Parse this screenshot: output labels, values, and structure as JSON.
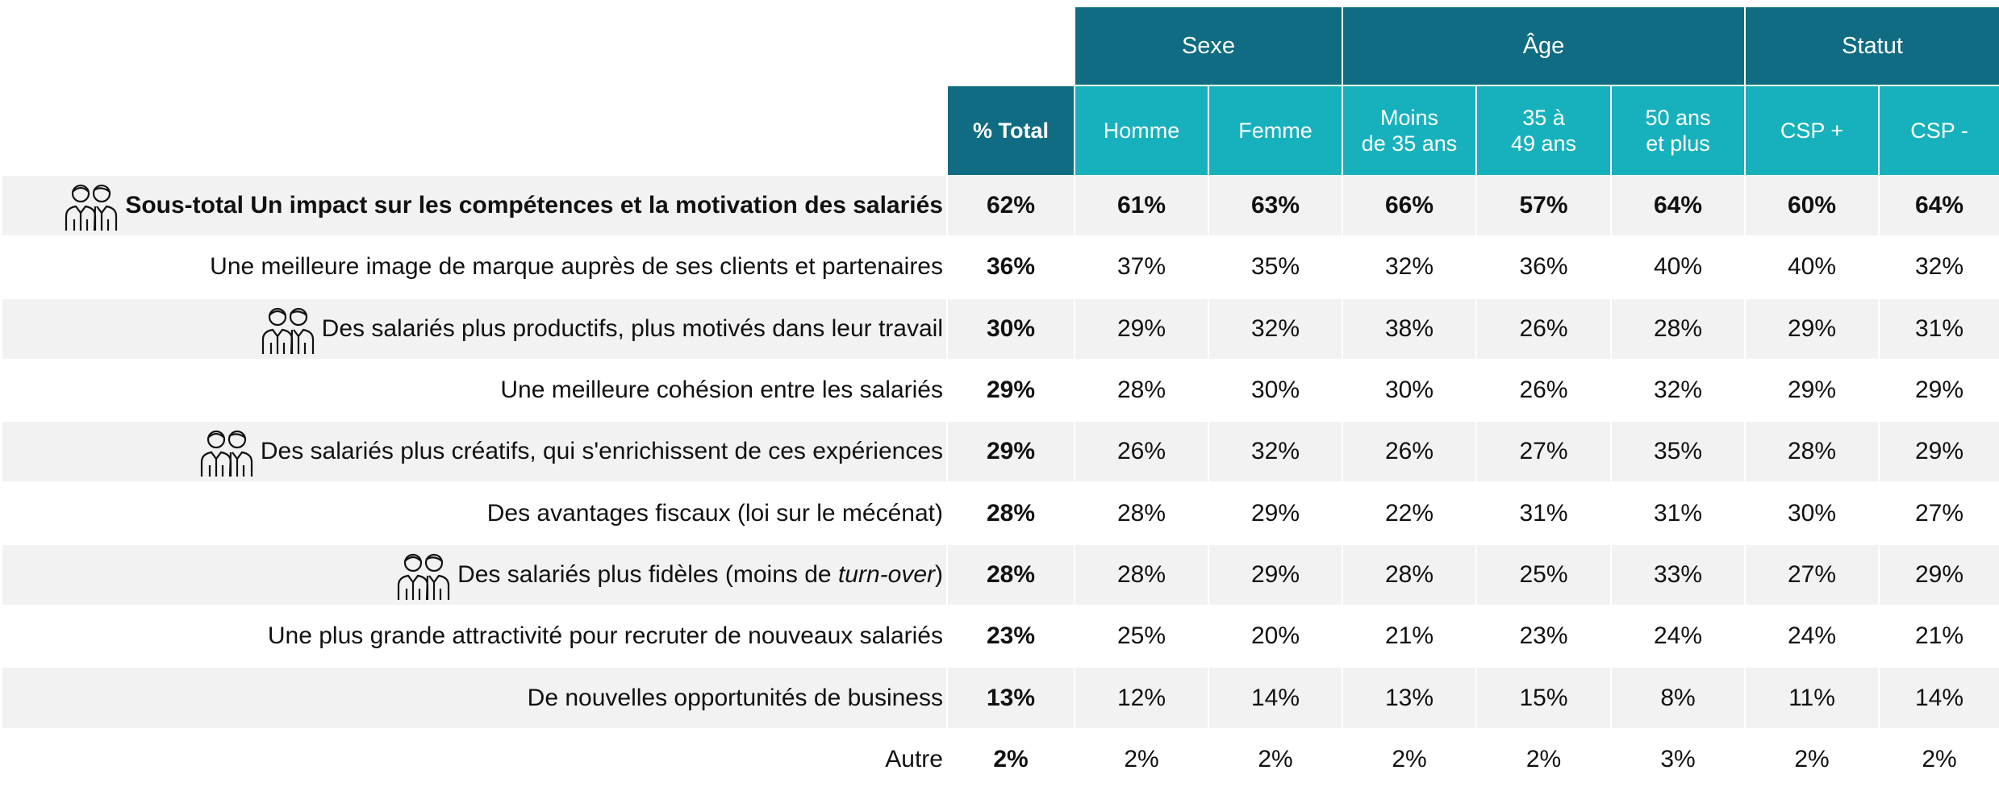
{
  "header": {
    "groups": [
      {
        "label": "Sexe",
        "from": 1,
        "to": 2
      },
      {
        "label": "Âge",
        "from": 3,
        "to": 5
      },
      {
        "label": "Statut",
        "from": 6,
        "to": 7
      }
    ],
    "columns": [
      {
        "lines": [
          "% Total"
        ]
      },
      {
        "lines": [
          "Homme"
        ]
      },
      {
        "lines": [
          "Femme"
        ]
      },
      {
        "lines": [
          "Moins",
          "de 35 ans"
        ]
      },
      {
        "lines": [
          "35 à",
          "49 ans"
        ]
      },
      {
        "lines": [
          "50 ans",
          "et plus"
        ]
      },
      {
        "lines": [
          "CSP +"
        ]
      },
      {
        "lines": [
          "CSP -"
        ]
      }
    ]
  },
  "rows": [
    {
      "label": "Sous-total Un impact sur les compétences et la motivation des salariés",
      "bold": true,
      "icon": true,
      "values": [
        "62%",
        "61%",
        "63%",
        "66%",
        "57%",
        "64%",
        "60%",
        "64%"
      ]
    },
    {
      "label": "Une meilleure image de marque auprès de ses clients et partenaires",
      "values": [
        "36%",
        "37%",
        "35%",
        "32%",
        "36%",
        "40%",
        "40%",
        "32%"
      ]
    },
    {
      "label": "Des salariés plus productifs, plus motivés dans leur travail",
      "icon": true,
      "values": [
        "30%",
        "29%",
        "32%",
        "38%",
        "26%",
        "28%",
        "29%",
        "31%"
      ]
    },
    {
      "label": "Une meilleure cohésion entre les salariés",
      "values": [
        "29%",
        "28%",
        "30%",
        "30%",
        "26%",
        "32%",
        "29%",
        "29%"
      ]
    },
    {
      "label": "Des salariés plus créatifs, qui s'enrichissent de ces expériences",
      "icon": true,
      "values": [
        "29%",
        "26%",
        "32%",
        "26%",
        "27%",
        "35%",
        "28%",
        "29%"
      ]
    },
    {
      "label": "Des avantages fiscaux (loi sur le mécénat)",
      "values": [
        "28%",
        "28%",
        "29%",
        "22%",
        "31%",
        "31%",
        "30%",
        "27%"
      ]
    },
    {
      "label": "Des salariés plus fidèles (moins de ",
      "label_italic": "turn-over",
      "label_end": ")",
      "icon": true,
      "values": [
        "28%",
        "28%",
        "29%",
        "28%",
        "25%",
        "33%",
        "27%",
        "29%"
      ]
    },
    {
      "label": "Une plus grande attractivité pour recruter de nouveaux salariés",
      "values": [
        "23%",
        "25%",
        "20%",
        "21%",
        "23%",
        "24%",
        "24%",
        "21%"
      ]
    },
    {
      "label": "De nouvelles opportunités de business",
      "values": [
        "13%",
        "12%",
        "14%",
        "13%",
        "15%",
        "8%",
        "11%",
        "14%"
      ]
    },
    {
      "label": "Autre",
      "values": [
        "2%",
        "2%",
        "2%",
        "2%",
        "2%",
        "3%",
        "2%",
        "2%"
      ]
    }
  ]
}
